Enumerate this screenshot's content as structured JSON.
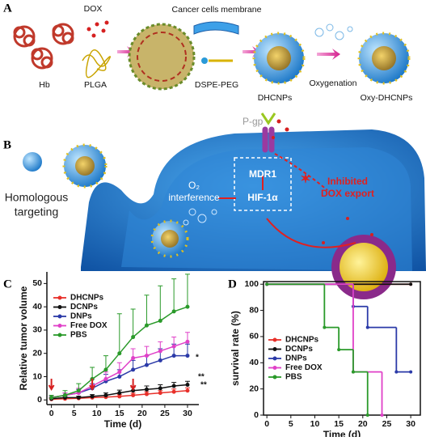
{
  "panel_a": {
    "label": "A",
    "dox": "DOX",
    "membrane": "Cancer cells membrane",
    "hb": "Hb",
    "plga": "PLGA",
    "dspe_peg": "DSPE-PEG",
    "dhcnps": "DHCNPs",
    "oxygenation": "Oxygenation",
    "oxy_dhcnps": "Oxy-DHCNPs"
  },
  "panel_b": {
    "label": "B",
    "pgp": "P-gp",
    "mdr1": "MDR1",
    "o2": "O₂",
    "interference": "interference",
    "hif": "HIF-1α",
    "inhibited": "Inhibited",
    "dox_export": "DOX export",
    "homologous": "Homologous",
    "targeting": "targeting"
  },
  "chart_data": [
    {
      "type": "line",
      "panel": "C",
      "xlabel": "Time (d)",
      "ylabel": "Relative tumor volume",
      "x": [
        0,
        3,
        6,
        9,
        12,
        15,
        18,
        21,
        24,
        27,
        30
      ],
      "xlim": [
        -1,
        32.5
      ],
      "xticks": [
        0,
        5,
        10,
        15,
        20,
        25,
        30
      ],
      "ylim": [
        -2,
        55
      ],
      "yticks": [
        0,
        10,
        20,
        30,
        40,
        50
      ],
      "legend": "upper-left",
      "annotations": [
        "*",
        "**",
        "**"
      ],
      "series": [
        {
          "name": "DHCNPs",
          "color": "#e8302a",
          "values": [
            0.3,
            0.5,
            0.7,
            1,
            1.2,
            1.5,
            2,
            2.5,
            3,
            3.5,
            4
          ],
          "errors": [
            0.3,
            0.4,
            0.5,
            0.6,
            0.7,
            0.8,
            0.9,
            1,
            1,
            1.2,
            1.2
          ]
        },
        {
          "name": "DCNPs",
          "color": "#111111",
          "values": [
            0.5,
            1,
            1,
            1.5,
            2,
            3,
            4,
            4.5,
            5,
            6,
            6.5
          ],
          "errors": [
            0.4,
            0.5,
            0.6,
            0.8,
            1,
            1.2,
            1.5,
            1.5,
            1.5,
            1.5,
            1.5
          ]
        },
        {
          "name": "DNPs",
          "color": "#2b3aa8",
          "values": [
            1,
            2,
            3,
            5,
            8,
            10,
            13,
            15,
            17,
            19,
            19
          ],
          "errors": [
            0.5,
            1,
            1.5,
            2,
            3,
            3,
            4,
            4,
            5,
            5,
            5
          ]
        },
        {
          "name": "Free DOX",
          "color": "#e040c8",
          "values": [
            1,
            2,
            3,
            6,
            9,
            12,
            18,
            19,
            21,
            23,
            25
          ],
          "errors": [
            0.5,
            1,
            2,
            3,
            3,
            4,
            4,
            4,
            4,
            4,
            4
          ]
        },
        {
          "name": "PBS",
          "color": "#2a9a2a",
          "values": [
            1,
            2,
            4,
            9,
            13,
            20,
            27,
            32,
            34,
            38,
            40
          ],
          "errors": [
            1,
            2,
            3,
            5,
            6,
            17,
            12,
            13,
            15,
            14,
            14
          ]
        }
      ]
    },
    {
      "type": "step",
      "panel": "D",
      "xlabel": "Time (d)",
      "ylabel": "survival rate (%)",
      "xlim": [
        -0.7,
        32
      ],
      "xticks": [
        0,
        5,
        10,
        15,
        20,
        25,
        30
      ],
      "ylim": [
        0,
        102
      ],
      "yticks": [
        0,
        20,
        40,
        60,
        80,
        100
      ],
      "legend": "center-left",
      "series": [
        {
          "name": "DHCNPs",
          "color": "#e8302a",
          "x": [
            0,
            30
          ],
          "values": [
            100,
            100
          ]
        },
        {
          "name": "DCNPs",
          "color": "#111111",
          "x": [
            0,
            30
          ],
          "values": [
            100,
            100
          ]
        },
        {
          "name": "DNPs",
          "color": "#2b3aa8",
          "x": [
            0,
            18,
            21,
            27,
            30
          ],
          "values": [
            100,
            83,
            67,
            33,
            33
          ]
        },
        {
          "name": "Free DOX",
          "color": "#e040c8",
          "x": [
            0,
            18,
            24
          ],
          "values": [
            100,
            33,
            0
          ]
        },
        {
          "name": "PBS",
          "color": "#2a9a2a",
          "x": [
            0,
            12,
            15,
            18,
            21
          ],
          "values": [
            100,
            67,
            50,
            33,
            0
          ]
        }
      ]
    }
  ]
}
